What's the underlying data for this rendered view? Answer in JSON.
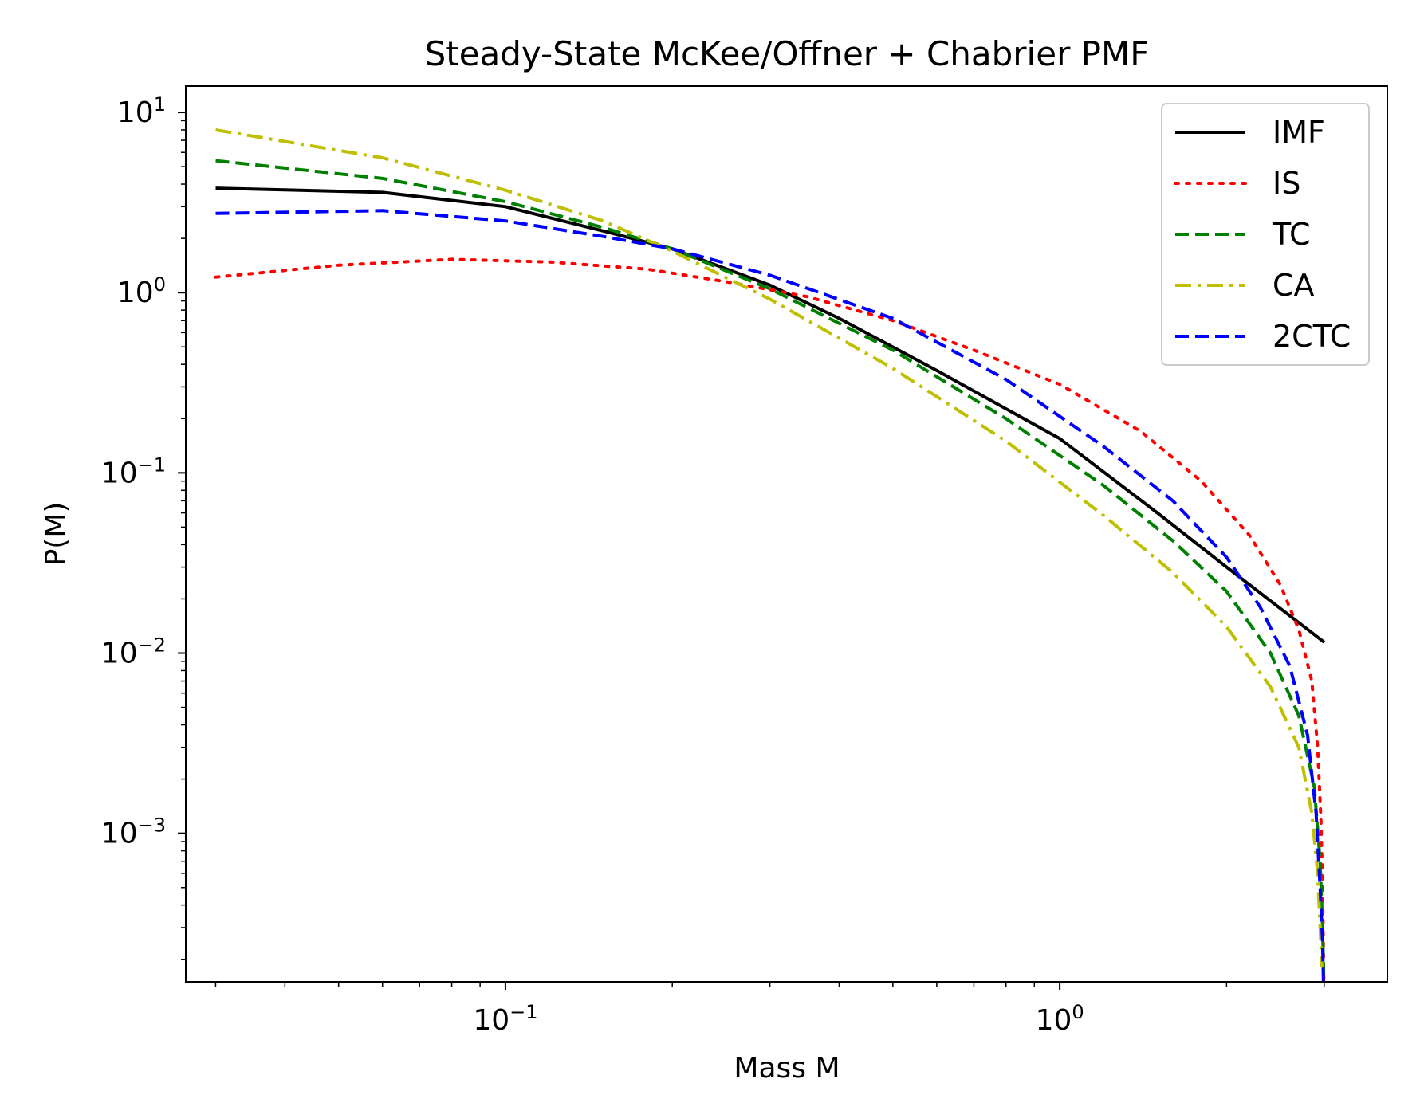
{
  "chart_data": {
    "type": "line",
    "title": "Steady-State McKee/Offner + Chabrier PMF",
    "xlabel": "Mass M",
    "ylabel": "P(M)",
    "xscale": "log",
    "yscale": "log",
    "xlim": [
      0.0265,
      3.9
    ],
    "ylim": [
      0.00015,
      14
    ],
    "x_ticks": [
      {
        "value": 0.1,
        "base": "10",
        "exp": "−1"
      },
      {
        "value": 1,
        "base": "10",
        "exp": "0"
      }
    ],
    "y_ticks": [
      {
        "value": 10,
        "base": "10",
        "exp": "1"
      },
      {
        "value": 1,
        "base": "10",
        "exp": "0"
      },
      {
        "value": 0.1,
        "base": "10",
        "exp": "−1"
      },
      {
        "value": 0.01,
        "base": "10",
        "exp": "−2"
      },
      {
        "value": 0.001,
        "base": "10",
        "exp": "−3"
      }
    ],
    "grid": false,
    "legend_position": "top-right",
    "series": [
      {
        "name": "IMF",
        "color": "#000000",
        "style": "solid",
        "x": [
          0.03,
          0.06,
          0.1,
          0.15,
          0.2,
          0.3,
          0.4,
          0.6,
          1.0,
          1.5,
          2.0,
          3.0
        ],
        "y": [
          3.8,
          3.6,
          3.0,
          2.2,
          1.75,
          1.1,
          0.72,
          0.37,
          0.155,
          0.06,
          0.03,
          0.0115
        ]
      },
      {
        "name": "IS",
        "color": "#ff0000",
        "style": "dotted",
        "x": [
          0.03,
          0.05,
          0.08,
          0.12,
          0.18,
          0.25,
          0.35,
          0.5,
          0.7,
          1.0,
          1.4,
          1.8,
          2.2,
          2.5,
          2.7,
          2.85,
          2.92,
          2.96,
          2.98,
          2.995
        ],
        "y": [
          1.22,
          1.42,
          1.53,
          1.48,
          1.35,
          1.15,
          0.95,
          0.7,
          0.48,
          0.31,
          0.17,
          0.09,
          0.045,
          0.024,
          0.0135,
          0.007,
          0.003,
          0.0012,
          0.0005,
          0.00015
        ]
      },
      {
        "name": "TC",
        "color": "#008000",
        "style": "dashed",
        "x": [
          0.03,
          0.06,
          0.1,
          0.15,
          0.2,
          0.3,
          0.5,
          0.8,
          1.2,
          1.6,
          2.0,
          2.4,
          2.7,
          2.88,
          2.95,
          2.98,
          2.995
        ],
        "y": [
          5.4,
          4.3,
          3.2,
          2.3,
          1.75,
          1.05,
          0.48,
          0.2,
          0.085,
          0.042,
          0.022,
          0.01,
          0.0045,
          0.0018,
          0.0007,
          0.0003,
          0.00015
        ]
      },
      {
        "name": "CA",
        "color": "#bfbf00",
        "style": "dashdot",
        "x": [
          0.03,
          0.06,
          0.1,
          0.15,
          0.2,
          0.3,
          0.5,
          0.8,
          1.2,
          1.6,
          2.0,
          2.4,
          2.7,
          2.85,
          2.92,
          2.95,
          2.97
        ],
        "y": [
          8.0,
          5.6,
          3.7,
          2.5,
          1.7,
          0.92,
          0.38,
          0.15,
          0.058,
          0.028,
          0.014,
          0.0065,
          0.003,
          0.0013,
          0.0006,
          0.0003,
          0.00018
        ]
      },
      {
        "name": "2CTC",
        "color": "#0000ff",
        "style": "dashed",
        "x": [
          0.03,
          0.06,
          0.1,
          0.15,
          0.2,
          0.3,
          0.5,
          0.8,
          1.2,
          1.6,
          2.0,
          2.3,
          2.6,
          2.8,
          2.9,
          2.95,
          2.98,
          2.995
        ],
        "y": [
          2.75,
          2.85,
          2.5,
          2.05,
          1.75,
          1.25,
          0.72,
          0.33,
          0.14,
          0.07,
          0.034,
          0.018,
          0.0085,
          0.0035,
          0.0013,
          0.0005,
          0.00025,
          0.00012
        ]
      }
    ]
  }
}
